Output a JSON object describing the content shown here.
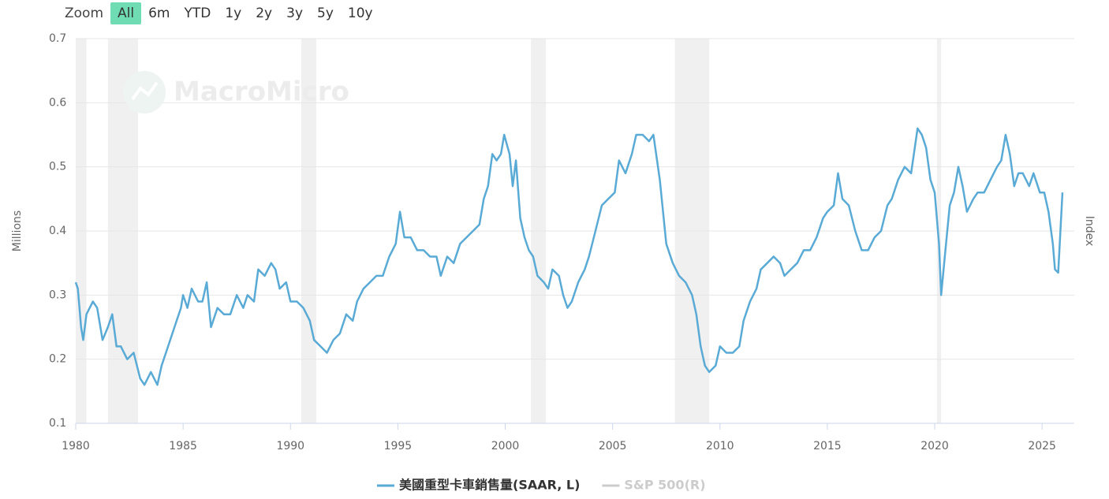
{
  "zoom": {
    "label": "Zoom",
    "buttons": [
      "All",
      "6m",
      "YTD",
      "1y",
      "2y",
      "3y",
      "5y",
      "10y"
    ]
  },
  "chart_data": {
    "type": "line",
    "watermark": "MacroMicro",
    "ylabel": "Millions",
    "y2label": "Index",
    "xlim": [
      1980,
      2026.5
    ],
    "xticks": [
      1980,
      1985,
      1990,
      1995,
      2000,
      2005,
      2010,
      2015,
      2020,
      2025
    ],
    "ylim": [
      0.1,
      0.7
    ],
    "yticks": [
      0.1,
      0.2,
      0.3,
      0.4,
      0.5,
      0.6,
      0.7
    ],
    "grid": true,
    "recessions": [
      [
        1980.0,
        1980.5
      ],
      [
        1981.5,
        1982.9
      ],
      [
        1990.5,
        1991.2
      ],
      [
        2001.2,
        2001.9
      ],
      [
        2007.9,
        2009.5
      ],
      [
        2020.1,
        2020.3
      ]
    ],
    "x": [
      1980.0,
      1980.1,
      1980.25,
      1980.35,
      1980.5,
      1980.8,
      1981.0,
      1981.25,
      1981.5,
      1981.7,
      1981.9,
      1982.1,
      1982.4,
      1982.7,
      1983.0,
      1983.2,
      1983.5,
      1983.8,
      1984.0,
      1984.3,
      1984.6,
      1984.9,
      1985.0,
      1985.2,
      1985.4,
      1985.7,
      1985.9,
      1986.1,
      1986.3,
      1986.6,
      1986.9,
      1987.2,
      1987.5,
      1987.8,
      1988.0,
      1988.3,
      1988.5,
      1988.8,
      1989.1,
      1989.3,
      1989.5,
      1989.8,
      1990.0,
      1990.3,
      1990.6,
      1990.9,
      1991.1,
      1991.4,
      1991.7,
      1992.0,
      1992.3,
      1992.6,
      1992.9,
      1993.1,
      1993.4,
      1993.7,
      1994.0,
      1994.3,
      1994.6,
      1994.9,
      1995.1,
      1995.3,
      1995.6,
      1995.9,
      1996.2,
      1996.5,
      1996.8,
      1997.0,
      1997.3,
      1997.6,
      1997.9,
      1998.2,
      1998.5,
      1998.8,
      1999.0,
      1999.2,
      1999.4,
      1999.6,
      1999.8,
      1999.95,
      2000.2,
      2000.35,
      2000.5,
      2000.7,
      2000.9,
      2001.1,
      2001.3,
      2001.5,
      2001.8,
      2002.0,
      2002.2,
      2002.5,
      2002.7,
      2002.9,
      2003.1,
      2003.4,
      2003.7,
      2003.9,
      2004.2,
      2004.5,
      2004.8,
      2005.1,
      2005.3,
      2005.6,
      2005.9,
      2006.1,
      2006.4,
      2006.7,
      2006.9,
      2007.2,
      2007.5,
      2007.8,
      2008.1,
      2008.4,
      2008.7,
      2008.9,
      2009.1,
      2009.3,
      2009.5,
      2009.8,
      2010.0,
      2010.3,
      2010.6,
      2010.9,
      2011.1,
      2011.4,
      2011.7,
      2011.9,
      2012.2,
      2012.5,
      2012.8,
      2013.0,
      2013.3,
      2013.6,
      2013.9,
      2014.2,
      2014.5,
      2014.8,
      2015.0,
      2015.3,
      2015.5,
      2015.7,
      2016.0,
      2016.3,
      2016.6,
      2016.9,
      2017.2,
      2017.5,
      2017.8,
      2018.0,
      2018.3,
      2018.6,
      2018.9,
      2019.2,
      2019.4,
      2019.6,
      2019.8,
      2020.0,
      2020.2,
      2020.3,
      2020.5,
      2020.7,
      2020.9,
      2021.1,
      2021.3,
      2021.5,
      2021.8,
      2022.0,
      2022.3,
      2022.6,
      2022.9,
      2023.1,
      2023.3,
      2023.5,
      2023.7,
      2023.9,
      2024.1,
      2024.4,
      2024.6,
      2024.9,
      2025.1,
      2025.3,
      2025.5,
      2025.6,
      2025.75,
      2025.95
    ],
    "series": [
      {
        "name": "美國重型卡車銷售量(SAAR, L)",
        "color": "#5aaad6",
        "values": [
          0.32,
          0.31,
          0.25,
          0.23,
          0.27,
          0.29,
          0.28,
          0.23,
          0.25,
          0.27,
          0.22,
          0.22,
          0.2,
          0.21,
          0.17,
          0.16,
          0.18,
          0.16,
          0.19,
          0.22,
          0.25,
          0.28,
          0.3,
          0.28,
          0.31,
          0.29,
          0.29,
          0.32,
          0.25,
          0.28,
          0.27,
          0.27,
          0.3,
          0.28,
          0.3,
          0.29,
          0.34,
          0.33,
          0.35,
          0.34,
          0.31,
          0.32,
          0.29,
          0.29,
          0.28,
          0.26,
          0.23,
          0.22,
          0.21,
          0.23,
          0.24,
          0.27,
          0.26,
          0.29,
          0.31,
          0.32,
          0.33,
          0.33,
          0.36,
          0.38,
          0.43,
          0.39,
          0.39,
          0.37,
          0.37,
          0.36,
          0.36,
          0.33,
          0.36,
          0.35,
          0.38,
          0.39,
          0.4,
          0.41,
          0.45,
          0.47,
          0.52,
          0.51,
          0.52,
          0.55,
          0.52,
          0.47,
          0.51,
          0.42,
          0.39,
          0.37,
          0.36,
          0.33,
          0.32,
          0.31,
          0.34,
          0.33,
          0.3,
          0.28,
          0.29,
          0.32,
          0.34,
          0.36,
          0.4,
          0.44,
          0.45,
          0.46,
          0.51,
          0.49,
          0.52,
          0.55,
          0.55,
          0.54,
          0.55,
          0.48,
          0.38,
          0.35,
          0.33,
          0.32,
          0.3,
          0.27,
          0.22,
          0.19,
          0.18,
          0.19,
          0.22,
          0.21,
          0.21,
          0.22,
          0.26,
          0.29,
          0.31,
          0.34,
          0.35,
          0.36,
          0.35,
          0.33,
          0.34,
          0.35,
          0.37,
          0.37,
          0.39,
          0.42,
          0.43,
          0.44,
          0.49,
          0.45,
          0.44,
          0.4,
          0.37,
          0.37,
          0.39,
          0.4,
          0.44,
          0.45,
          0.48,
          0.5,
          0.49,
          0.56,
          0.55,
          0.53,
          0.48,
          0.46,
          0.38,
          0.3,
          0.37,
          0.44,
          0.46,
          0.5,
          0.47,
          0.43,
          0.45,
          0.46,
          0.46,
          0.48,
          0.5,
          0.51,
          0.55,
          0.52,
          0.47,
          0.49,
          0.49,
          0.47,
          0.49,
          0.46,
          0.46,
          0.43,
          0.38,
          0.34,
          0.335,
          0.46
        ]
      }
    ],
    "hidden_series": [
      {
        "name": "S&P 500(R)",
        "color": "#cccccc"
      }
    ]
  }
}
